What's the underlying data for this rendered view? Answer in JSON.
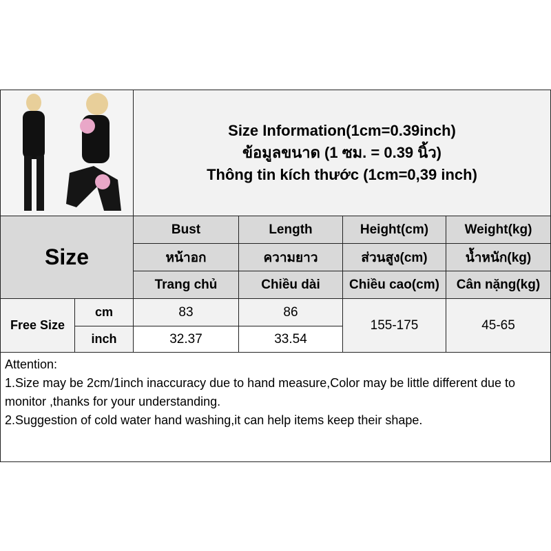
{
  "title": {
    "line1": "Size Information(1cm=0.39inch)",
    "line2": "ข้อมูลขนาด (1 ซม. = 0.39 นิ้ว)",
    "line3": "Thông tin kích thước (1cm=0,39 inch)"
  },
  "size_label": "Size",
  "headers": [
    {
      "en": "Bust",
      "th": "หน้าอก",
      "vi": "Trang chủ"
    },
    {
      "en": "Length",
      "th": "ความยาว",
      "vi": "Chiều dài"
    },
    {
      "en": "Height(cm)",
      "th": "ส่วนสูง(cm)",
      "vi": "Chiều cao(cm)"
    },
    {
      "en": "Weight(kg)",
      "th": "น้ำหนัก(kg)",
      "vi": "Cân nặng(kg)"
    }
  ],
  "rows": {
    "size": "Free Size",
    "cm": {
      "unit": "cm",
      "bust": "83",
      "length": "86"
    },
    "inch": {
      "unit": "inch",
      "bust": "32.37",
      "length": "33.54"
    },
    "height": "155-175",
    "weight": "45-65"
  },
  "attention": {
    "heading": "Attention:",
    "line1": "1.Size may be 2cm/1inch inaccuracy due to hand measure,Color may be little different due to monitor ,thanks for your understanding.",
    "line2": "2.Suggestion of cold water hand washing,it can help items keep their shape."
  }
}
